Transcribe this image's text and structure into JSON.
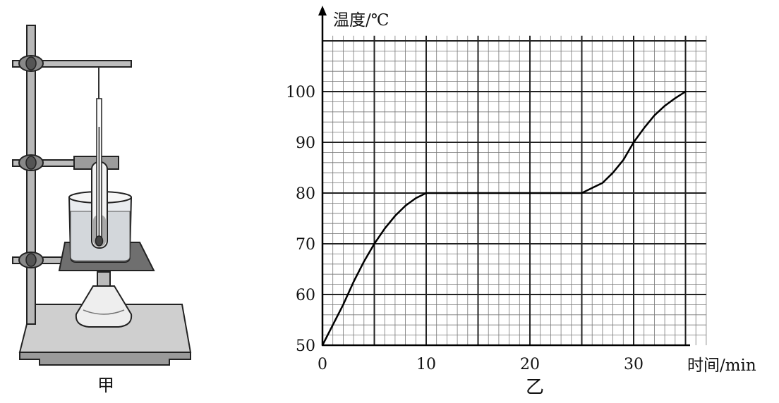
{
  "apparatus": {
    "label": "甲"
  },
  "chart": {
    "label": "乙",
    "ylabel": "温度/℃",
    "xlabel": "时间/min"
  },
  "chart_data": {
    "type": "line",
    "xlabel": "时间/min",
    "ylabel": "温度/℃",
    "xlim": [
      0,
      37
    ],
    "ylim": [
      50,
      111
    ],
    "x_ticks": [
      0,
      10,
      20,
      30
    ],
    "y_ticks": [
      50,
      60,
      70,
      80,
      90,
      100
    ],
    "x_ticks_labels": [
      "0",
      "10",
      "20",
      "30"
    ],
    "y_ticks_labels": [
      "50",
      "60",
      "70",
      "80",
      "90",
      "100"
    ],
    "grid": true,
    "series": [
      {
        "x": [
          0,
          1,
          2,
          3,
          4,
          5,
          6,
          7,
          8,
          9,
          10,
          15,
          20,
          25,
          26,
          27,
          28,
          29,
          30,
          31,
          32,
          33,
          34,
          35
        ],
        "y": [
          50,
          54,
          58,
          62.5,
          66.5,
          70,
          73,
          75.5,
          77.5,
          79,
          80,
          80,
          80,
          80,
          81,
          82,
          84,
          86.5,
          90,
          92.8,
          95.3,
          97.2,
          98.7,
          100
        ]
      }
    ]
  }
}
